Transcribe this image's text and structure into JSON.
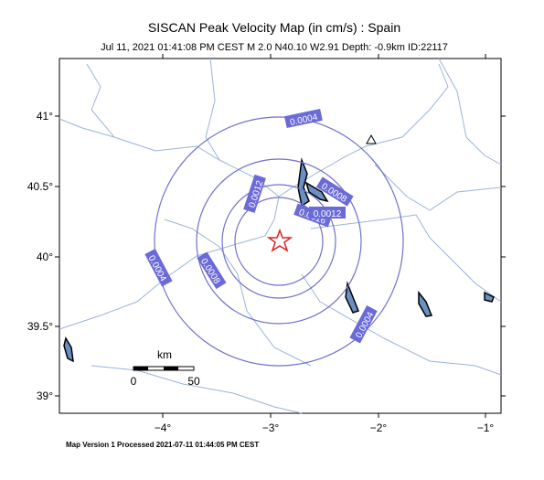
{
  "header": {
    "title": "SISCAN Peak Velocity Map (in cm/s) : Spain",
    "subtitle": "Jul 11, 2021 01:41:08 PM CEST   M 2.0   N40.10 W2.91   Depth: -0.9km   ID:22117"
  },
  "latitude_labels": [
    "41°",
    "40.5°",
    "40°",
    "39.5°",
    "39°"
  ],
  "longitude_labels": [
    "−4°",
    "−3°",
    "−2°",
    "−1°"
  ],
  "contour_labels": [
    "0.0004",
    "0.0008",
    "0.0012",
    "0.0016",
    "0.0012",
    "0.0004",
    "0.0008",
    "0.0004"
  ],
  "scale_bar": {
    "unit": "km",
    "start": "0",
    "end": "50"
  },
  "footer": "Map Version 1 Processed 2021-07-11 01:44:05 PM CEST"
}
